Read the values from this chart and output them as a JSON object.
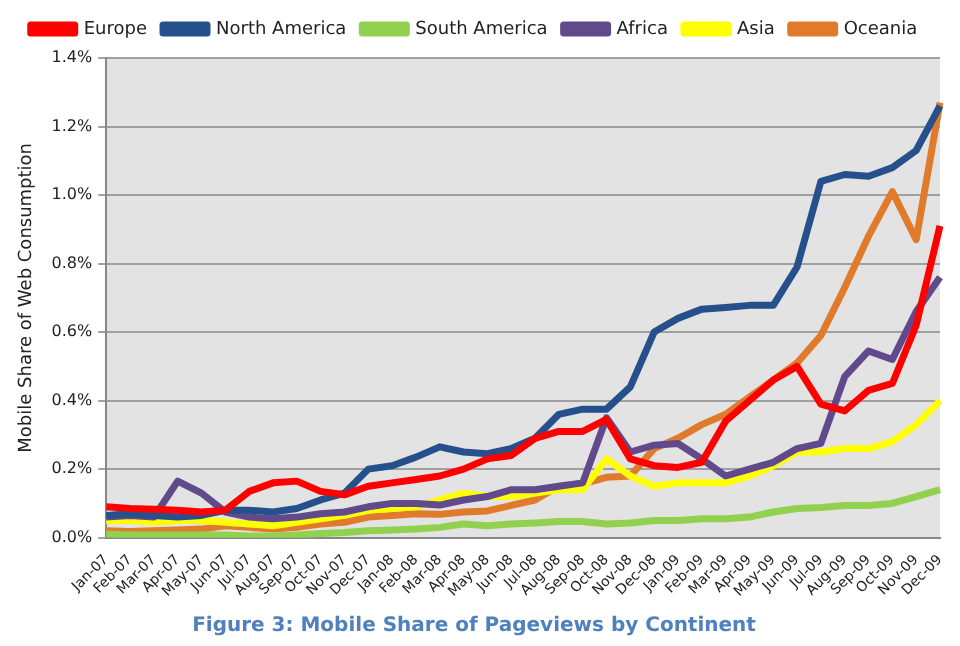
{
  "chart_data": {
    "type": "line",
    "title": "Figure 3: Mobile Share of Pageviews by Continent",
    "ylabel": "Mobile Share of Web Consumption",
    "categories": [
      "Jan-07",
      "Feb-07",
      "Mar-07",
      "Apr-07",
      "May-07",
      "Jun-07",
      "Jul-07",
      "Aug-07",
      "Sep-07",
      "Oct-07",
      "Nov-07",
      "Dec-07",
      "Jan-08",
      "Feb-08",
      "Mar-08",
      "Apr-08",
      "May-08",
      "Jun-08",
      "Jul-08",
      "Aug-08",
      "Sep-08",
      "Oct-08",
      "Nov-08",
      "Dec-08",
      "Jan-09",
      "Feb-09",
      "Mar-09",
      "Apr-09",
      "May-09",
      "Jun-09",
      "Jul-09",
      "Aug-09",
      "Sep-09",
      "Oct-09",
      "Nov-09",
      "Dec-09"
    ],
    "series": [
      {
        "name": "Europe",
        "color": "#ff0000",
        "values": [
          0.09,
          0.085,
          0.083,
          0.08,
          0.075,
          0.08,
          0.135,
          0.16,
          0.165,
          0.135,
          0.125,
          0.15,
          0.16,
          0.17,
          0.18,
          0.2,
          0.23,
          0.24,
          0.29,
          0.31,
          0.31,
          0.345,
          0.23,
          0.21,
          0.205,
          0.22,
          0.34,
          0.4,
          0.46,
          0.5,
          0.39,
          0.37,
          0.43,
          0.45,
          0.62,
          0.91
        ]
      },
      {
        "name": "North America",
        "color": "#25508c",
        "values": [
          0.065,
          0.07,
          0.065,
          0.06,
          0.065,
          0.08,
          0.08,
          0.075,
          0.085,
          0.11,
          0.13,
          0.2,
          0.21,
          0.235,
          0.265,
          0.25,
          0.245,
          0.26,
          0.29,
          0.36,
          0.375,
          0.375,
          0.44,
          0.6,
          0.64,
          0.667,
          0.672,
          0.678,
          0.678,
          0.79,
          1.04,
          1.06,
          1.055,
          1.08,
          1.13,
          1.26
        ]
      },
      {
        "name": "South America",
        "color": "#92d050",
        "values": [
          0.01,
          0.008,
          0.008,
          0.008,
          0.008,
          0.008,
          0.005,
          0.005,
          0.008,
          0.012,
          0.015,
          0.02,
          0.022,
          0.025,
          0.03,
          0.04,
          0.035,
          0.04,
          0.043,
          0.047,
          0.047,
          0.04,
          0.043,
          0.05,
          0.05,
          0.055,
          0.055,
          0.06,
          0.075,
          0.085,
          0.088,
          0.094,
          0.094,
          0.1,
          0.12,
          0.14
        ]
      },
      {
        "name": "Africa",
        "color": "#604a8b",
        "values": [
          0.06,
          0.065,
          0.06,
          0.165,
          0.13,
          0.075,
          0.06,
          0.055,
          0.06,
          0.07,
          0.075,
          0.09,
          0.1,
          0.1,
          0.095,
          0.11,
          0.12,
          0.14,
          0.14,
          0.15,
          0.16,
          0.35,
          0.25,
          0.27,
          0.275,
          0.23,
          0.18,
          0.2,
          0.22,
          0.26,
          0.275,
          0.47,
          0.545,
          0.52,
          0.66,
          0.76
        ]
      },
      {
        "name": "Asia",
        "color": "#ffff00",
        "values": [
          0.05,
          0.05,
          0.045,
          0.05,
          0.05,
          0.045,
          0.04,
          0.035,
          0.045,
          0.055,
          0.065,
          0.08,
          0.085,
          0.09,
          0.11,
          0.13,
          0.12,
          0.12,
          0.13,
          0.14,
          0.14,
          0.23,
          0.18,
          0.15,
          0.16,
          0.16,
          0.16,
          0.18,
          0.21,
          0.25,
          0.25,
          0.26,
          0.26,
          0.28,
          0.33,
          0.4
        ]
      },
      {
        "name": "Oceania",
        "color": "#e07b2c",
        "values": [
          0.02,
          0.018,
          0.02,
          0.022,
          0.025,
          0.035,
          0.03,
          0.025,
          0.03,
          0.04,
          0.045,
          0.06,
          0.065,
          0.07,
          0.068,
          0.075,
          0.078,
          0.094,
          0.11,
          0.15,
          0.157,
          0.176,
          0.18,
          0.26,
          0.29,
          0.33,
          0.36,
          0.41,
          0.46,
          0.51,
          0.59,
          0.73,
          0.88,
          1.01,
          0.87,
          1.27
        ]
      }
    ],
    "ylim": [
      0,
      1.4
    ],
    "yticks": [
      {
        "value": 0,
        "label": "0.0%"
      },
      {
        "value": 0.2,
        "label": "0.2%"
      },
      {
        "value": 0.4,
        "label": "0.4%"
      },
      {
        "value": 0.6,
        "label": "0.6%"
      },
      {
        "value": 0.8,
        "label": "0.8%"
      },
      {
        "value": 1.0,
        "label": "1.0%"
      },
      {
        "value": 1.2,
        "label": "1.2%"
      },
      {
        "value": 1.4,
        "label": "1.4%"
      }
    ],
    "grid": "y",
    "legend": "top",
    "marker": "none",
    "line_style": "solid"
  }
}
